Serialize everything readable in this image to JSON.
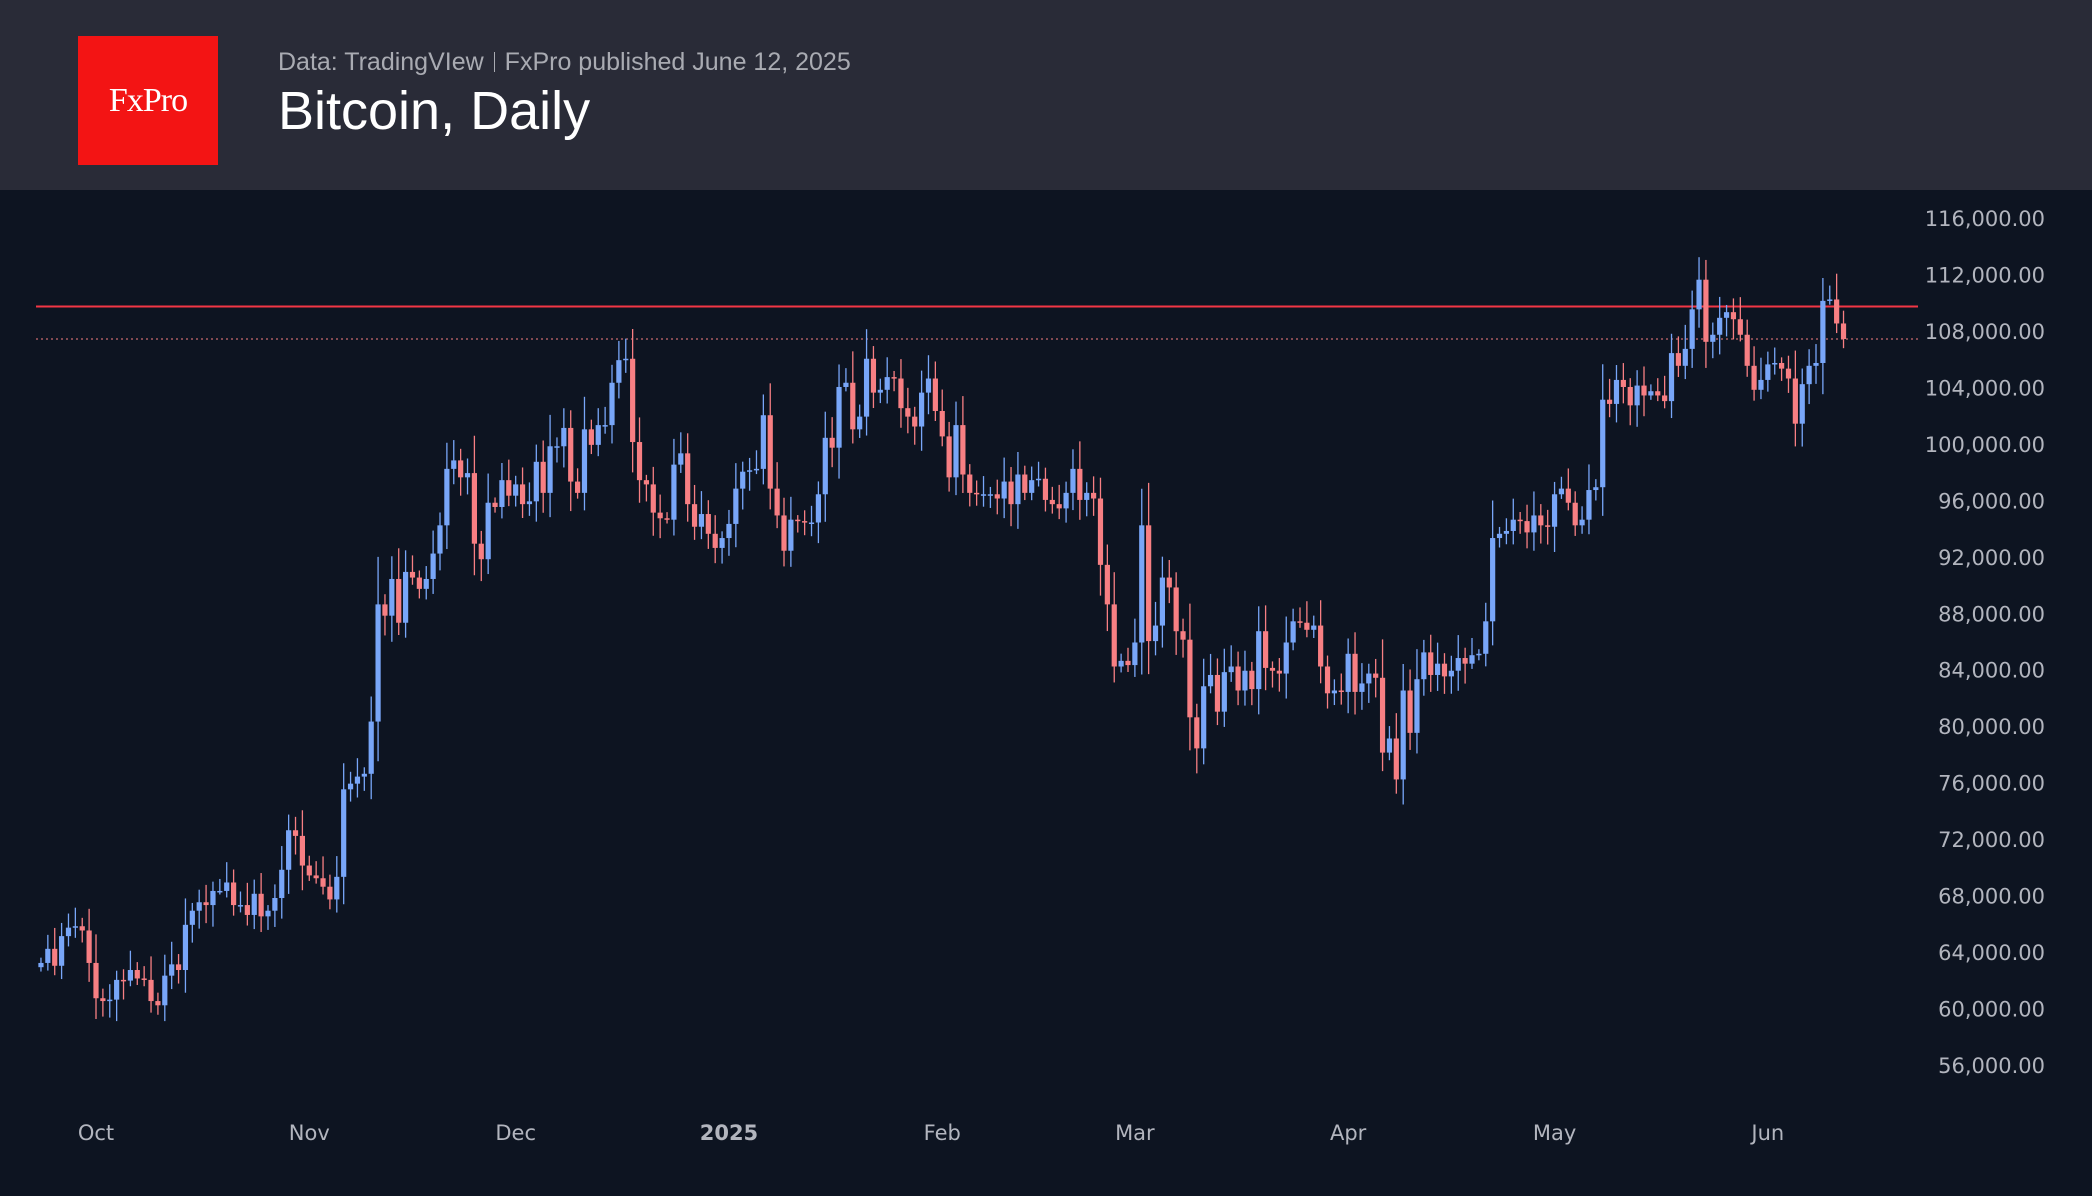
{
  "header": {
    "logo_text": "FxPro",
    "data_source": "Data: TradingVIew",
    "publisher": "FxPro published June 12, 2025",
    "title": "Bitcoin, Daily"
  },
  "colors": {
    "up": "#78a6f8",
    "down": "#f77f83",
    "resistance": "#f23645",
    "last_price": "#f77f83",
    "background": "#0d1421",
    "header": "#292b37",
    "logo": "#f31414"
  },
  "chart_data": {
    "type": "candlestick",
    "title": "Bitcoin, Daily",
    "start_date": "2024-09-23",
    "first_open": 63000,
    "ylim": [
      54000,
      118000
    ],
    "y_ticks": [
      "116,000.00",
      "112,000.00",
      "108,000.00",
      "104,000.00",
      "100,000.00",
      "96,000.00",
      "92,000.00",
      "88,000.00",
      "84,000.00",
      "80,000.00",
      "76,000.00",
      "72,000.00",
      "68,000.00",
      "64,000.00",
      "60,000.00",
      "56,000.00"
    ],
    "y_tick_values": [
      116000,
      112000,
      108000,
      104000,
      100000,
      96000,
      92000,
      88000,
      84000,
      80000,
      76000,
      72000,
      68000,
      64000,
      60000,
      56000
    ],
    "x_ticks": [
      {
        "label": "Oct",
        "date": "2024-10-01",
        "bold": false
      },
      {
        "label": "Nov",
        "date": "2024-11-01",
        "bold": false
      },
      {
        "label": "Dec",
        "date": "2024-12-01",
        "bold": false
      },
      {
        "label": "2025",
        "date": "2025-01-01",
        "bold": true
      },
      {
        "label": "Feb",
        "date": "2025-02-01",
        "bold": false
      },
      {
        "label": "Mar",
        "date": "2025-03-01",
        "bold": false
      },
      {
        "label": "Apr",
        "date": "2025-04-01",
        "bold": false
      },
      {
        "label": "May",
        "date": "2025-05-01",
        "bold": false
      },
      {
        "label": "Jun",
        "date": "2025-06-01",
        "bold": false
      }
    ],
    "resistance_level": 109800,
    "last_price": 107500,
    "closes": [
      63300,
      64300,
      63100,
      65200,
      65800,
      65900,
      65600,
      63300,
      60800,
      60600,
      60700,
      62100,
      62050,
      62800,
      62200,
      62100,
      60600,
      60300,
      62400,
      63200,
      62800,
      66000,
      67000,
      67600,
      67400,
      68400,
      68400,
      69000,
      67400,
      67400,
      66700,
      68200,
      66600,
      67000,
      67900,
      69900,
      72700,
      72300,
      70200,
      69500,
      69300,
      68700,
      67800,
      69400,
      75600,
      76000,
      76500,
      76700,
      80400,
      88700,
      87900,
      90500,
      87400,
      91000,
      90600,
      89800,
      90500,
      92300,
      94300,
      98300,
      98900,
      97700,
      98000,
      93000,
      91900,
      95900,
      95600,
      97500,
      96400,
      97200,
      95800,
      96000,
      98800,
      96600,
      99900,
      99900,
      101200,
      97400,
      96600,
      101100,
      100000,
      101400,
      101400,
      104400,
      106000,
      106100,
      100200,
      97500,
      97200,
      95200,
      94800,
      94700,
      98600,
      99400,
      95800,
      94200,
      95100,
      93700,
      92700,
      93400,
      94400,
      96900,
      98100,
      98200,
      98300,
      102100,
      96900,
      95000,
      92500,
      94700,
      94600,
      94500,
      94500,
      96500,
      100500,
      99800,
      104100,
      104400,
      101100,
      102000,
      106100,
      103700,
      103900,
      104800,
      104700,
      102600,
      102000,
      101300,
      103700,
      104700,
      102400,
      100600,
      97700,
      101400,
      97900,
      96600,
      96500,
      96500,
      96500,
      96200,
      97400,
      95800,
      97900,
      96600,
      97500,
      97600,
      96100,
      95800,
      95500,
      96600,
      98300,
      96100,
      96600,
      96200,
      91500,
      88700,
      84300,
      84700,
      84400,
      86000,
      94300,
      86100,
      87200,
      90600,
      89900,
      86800,
      86200,
      80700,
      78500,
      82900,
      83700,
      81100,
      83900,
      84300,
      82600,
      84000,
      82700,
      86800,
      84200,
      84000,
      83800,
      86000,
      87500,
      87400,
      86900,
      87200,
      84300,
      82400,
      82600,
      82500,
      85200,
      82500,
      83100,
      83800,
      83500,
      78200,
      79200,
      76300,
      82600,
      79600,
      83400,
      85300,
      83700,
      84500,
      83600,
      84000,
      84900,
      84500,
      85100,
      85200,
      87500,
      93400,
      93700,
      93900,
      94700,
      94600,
      93800,
      95000,
      94300,
      94200,
      96500,
      96900,
      95900,
      94300,
      94700,
      96800,
      97000,
      103200,
      102900,
      104600,
      104100,
      102800,
      104200,
      103500,
      103800,
      103500,
      103100,
      106500,
      105600,
      106800,
      109600,
      111700,
      107300,
      107800,
      109000,
      109400,
      108900,
      107800,
      105600,
      103900,
      104600,
      105700,
      105800,
      105400,
      104700,
      101500,
      104300,
      105600,
      105800,
      110200,
      110300,
      108600,
      107500
    ]
  }
}
